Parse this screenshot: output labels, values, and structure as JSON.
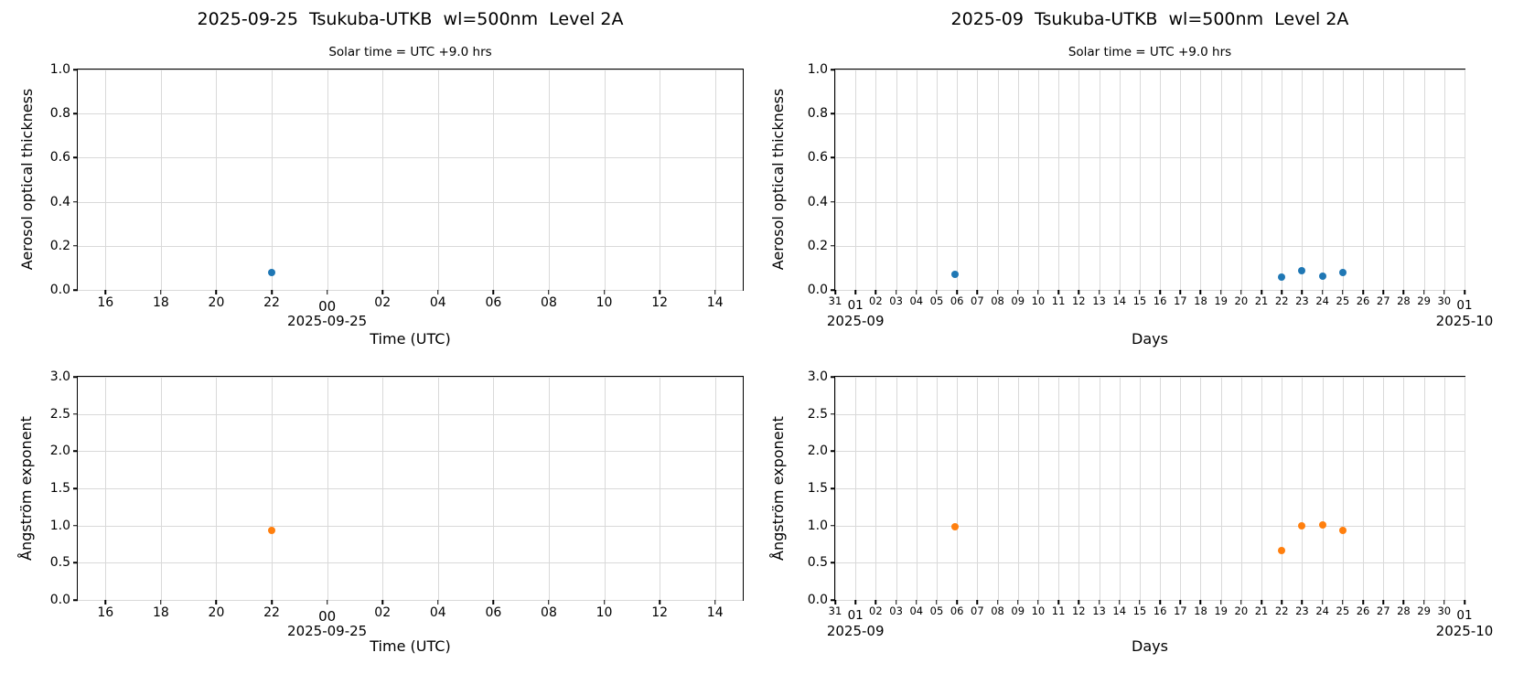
{
  "figure": {
    "background": "#ffffff"
  },
  "colors": {
    "aot_point": "#1f77b4",
    "angstrom_point": "#ff7f0e",
    "grid": "#d9d9d9",
    "axis": "#000000",
    "text": "#000000"
  },
  "chart_data": [
    {
      "id": "daily-aerosol-optical-thickness",
      "type": "scatter",
      "title": "2025-09-25  Tsukuba-UTKB  wl=500nm  Level 2A",
      "subtitle": "Solar time = UTC +9.0 hrs",
      "xlabel": "Time (UTC)",
      "ylabel": "Aerosol optical thickness",
      "grid": true,
      "legend": "none",
      "xlim": [
        15,
        39
      ],
      "ylim": [
        0.0,
        1.0
      ],
      "color": "#1f77b4",
      "x_ticks": [
        {
          "pos": 16,
          "label": "16"
        },
        {
          "pos": 18,
          "label": "18"
        },
        {
          "pos": 20,
          "label": "20"
        },
        {
          "pos": 22,
          "label": "22"
        },
        {
          "pos": 24,
          "label": "00",
          "major": true
        },
        {
          "pos": 26,
          "label": "02"
        },
        {
          "pos": 28,
          "label": "04"
        },
        {
          "pos": 30,
          "label": "06"
        },
        {
          "pos": 32,
          "label": "08"
        },
        {
          "pos": 34,
          "label": "10"
        },
        {
          "pos": 36,
          "label": "12"
        },
        {
          "pos": 38,
          "label": "14"
        }
      ],
      "x_sub_labels": [
        {
          "pos": 24,
          "label": "2025-09-25"
        }
      ],
      "y_ticks": [
        {
          "pos": 0.0,
          "label": "0.0"
        },
        {
          "pos": 0.2,
          "label": "0.2"
        },
        {
          "pos": 0.4,
          "label": "0.4"
        },
        {
          "pos": 0.6,
          "label": "0.6"
        },
        {
          "pos": 0.8,
          "label": "0.8"
        },
        {
          "pos": 1.0,
          "label": "1.0"
        }
      ],
      "points": [
        {
          "x": 22,
          "y": 0.08
        }
      ]
    },
    {
      "id": "monthly-aerosol-optical-thickness",
      "type": "scatter",
      "title": "2025-09  Tsukuba-UTKB  wl=500nm  Level 2A",
      "subtitle": "Solar time = UTC +9.0 hrs",
      "xlabel": "Days",
      "ylabel": "Aerosol optical thickness",
      "grid": true,
      "legend": "none",
      "xlim": [
        0,
        31
      ],
      "ylim": [
        0.0,
        1.0
      ],
      "color": "#1f77b4",
      "x_ticks": [
        {
          "pos": 0,
          "label": "31"
        },
        {
          "pos": 1,
          "label": "01",
          "major": true
        },
        {
          "pos": 2,
          "label": "02"
        },
        {
          "pos": 3,
          "label": "03"
        },
        {
          "pos": 4,
          "label": "04"
        },
        {
          "pos": 5,
          "label": "05"
        },
        {
          "pos": 6,
          "label": "06"
        },
        {
          "pos": 7,
          "label": "07"
        },
        {
          "pos": 8,
          "label": "08"
        },
        {
          "pos": 9,
          "label": "09"
        },
        {
          "pos": 10,
          "label": "10"
        },
        {
          "pos": 11,
          "label": "11"
        },
        {
          "pos": 12,
          "label": "12"
        },
        {
          "pos": 13,
          "label": "13"
        },
        {
          "pos": 14,
          "label": "14"
        },
        {
          "pos": 15,
          "label": "15"
        },
        {
          "pos": 16,
          "label": "16"
        },
        {
          "pos": 17,
          "label": "17"
        },
        {
          "pos": 18,
          "label": "18"
        },
        {
          "pos": 19,
          "label": "19"
        },
        {
          "pos": 20,
          "label": "20"
        },
        {
          "pos": 21,
          "label": "21"
        },
        {
          "pos": 22,
          "label": "22"
        },
        {
          "pos": 23,
          "label": "23"
        },
        {
          "pos": 24,
          "label": "24"
        },
        {
          "pos": 25,
          "label": "25"
        },
        {
          "pos": 26,
          "label": "26"
        },
        {
          "pos": 27,
          "label": "27"
        },
        {
          "pos": 28,
          "label": "28"
        },
        {
          "pos": 29,
          "label": "29"
        },
        {
          "pos": 30,
          "label": "30"
        },
        {
          "pos": 31,
          "label": "01",
          "major": true
        }
      ],
      "x_sub_labels": [
        {
          "pos": 1,
          "label": "2025-09"
        },
        {
          "pos": 31,
          "label": "2025-10"
        }
      ],
      "y_ticks": [
        {
          "pos": 0.0,
          "label": "0.0"
        },
        {
          "pos": 0.2,
          "label": "0.2"
        },
        {
          "pos": 0.4,
          "label": "0.4"
        },
        {
          "pos": 0.6,
          "label": "0.6"
        },
        {
          "pos": 0.8,
          "label": "0.8"
        },
        {
          "pos": 1.0,
          "label": "1.0"
        }
      ],
      "points": [
        {
          "x": 5.9,
          "y": 0.072
        },
        {
          "x": 22,
          "y": 0.06
        },
        {
          "x": 23,
          "y": 0.088
        },
        {
          "x": 24,
          "y": 0.064
        },
        {
          "x": 25,
          "y": 0.078
        }
      ]
    },
    {
      "id": "daily-angstrom-exponent",
      "type": "scatter",
      "title": "",
      "subtitle": "",
      "xlabel": "Time (UTC)",
      "ylabel": "Ångström exponent",
      "grid": true,
      "legend": "none",
      "xlim": [
        15,
        39
      ],
      "ylim": [
        0.0,
        3.0
      ],
      "color": "#ff7f0e",
      "x_ticks": [
        {
          "pos": 16,
          "label": "16"
        },
        {
          "pos": 18,
          "label": "18"
        },
        {
          "pos": 20,
          "label": "20"
        },
        {
          "pos": 22,
          "label": "22"
        },
        {
          "pos": 24,
          "label": "00",
          "major": true
        },
        {
          "pos": 26,
          "label": "02"
        },
        {
          "pos": 28,
          "label": "04"
        },
        {
          "pos": 30,
          "label": "06"
        },
        {
          "pos": 32,
          "label": "08"
        },
        {
          "pos": 34,
          "label": "10"
        },
        {
          "pos": 36,
          "label": "12"
        },
        {
          "pos": 38,
          "label": "14"
        }
      ],
      "x_sub_labels": [
        {
          "pos": 24,
          "label": "2025-09-25"
        }
      ],
      "y_ticks": [
        {
          "pos": 0.0,
          "label": "0.0"
        },
        {
          "pos": 0.5,
          "label": "0.5"
        },
        {
          "pos": 1.0,
          "label": "1.0"
        },
        {
          "pos": 1.5,
          "label": "1.5"
        },
        {
          "pos": 2.0,
          "label": "2.0"
        },
        {
          "pos": 2.5,
          "label": "2.5"
        },
        {
          "pos": 3.0,
          "label": "3.0"
        }
      ],
      "points": [
        {
          "x": 22,
          "y": 0.93
        }
      ]
    },
    {
      "id": "monthly-angstrom-exponent",
      "type": "scatter",
      "title": "",
      "subtitle": "",
      "xlabel": "Days",
      "ylabel": "Ångström exponent",
      "grid": true,
      "legend": "none",
      "xlim": [
        0,
        31
      ],
      "ylim": [
        0.0,
        3.0
      ],
      "color": "#ff7f0e",
      "x_ticks": [
        {
          "pos": 0,
          "label": "31"
        },
        {
          "pos": 1,
          "label": "01",
          "major": true
        },
        {
          "pos": 2,
          "label": "02"
        },
        {
          "pos": 3,
          "label": "03"
        },
        {
          "pos": 4,
          "label": "04"
        },
        {
          "pos": 5,
          "label": "05"
        },
        {
          "pos": 6,
          "label": "06"
        },
        {
          "pos": 7,
          "label": "07"
        },
        {
          "pos": 8,
          "label": "08"
        },
        {
          "pos": 9,
          "label": "09"
        },
        {
          "pos": 10,
          "label": "10"
        },
        {
          "pos": 11,
          "label": "11"
        },
        {
          "pos": 12,
          "label": "12"
        },
        {
          "pos": 13,
          "label": "13"
        },
        {
          "pos": 14,
          "label": "14"
        },
        {
          "pos": 15,
          "label": "15"
        },
        {
          "pos": 16,
          "label": "16"
        },
        {
          "pos": 17,
          "label": "17"
        },
        {
          "pos": 18,
          "label": "18"
        },
        {
          "pos": 19,
          "label": "19"
        },
        {
          "pos": 20,
          "label": "20"
        },
        {
          "pos": 21,
          "label": "21"
        },
        {
          "pos": 22,
          "label": "22"
        },
        {
          "pos": 23,
          "label": "23"
        },
        {
          "pos": 24,
          "label": "24"
        },
        {
          "pos": 25,
          "label": "25"
        },
        {
          "pos": 26,
          "label": "26"
        },
        {
          "pos": 27,
          "label": "27"
        },
        {
          "pos": 28,
          "label": "28"
        },
        {
          "pos": 29,
          "label": "29"
        },
        {
          "pos": 30,
          "label": "30"
        },
        {
          "pos": 31,
          "label": "01",
          "major": true
        }
      ],
      "x_sub_labels": [
        {
          "pos": 1,
          "label": "2025-09"
        },
        {
          "pos": 31,
          "label": "2025-10"
        }
      ],
      "y_ticks": [
        {
          "pos": 0.0,
          "label": "0.0"
        },
        {
          "pos": 0.5,
          "label": "0.5"
        },
        {
          "pos": 1.0,
          "label": "1.0"
        },
        {
          "pos": 1.5,
          "label": "1.5"
        },
        {
          "pos": 2.0,
          "label": "2.0"
        },
        {
          "pos": 2.5,
          "label": "2.5"
        },
        {
          "pos": 3.0,
          "label": "3.0"
        }
      ],
      "points": [
        {
          "x": 5.9,
          "y": 0.98
        },
        {
          "x": 22,
          "y": 0.66
        },
        {
          "x": 23,
          "y": 1.0
        },
        {
          "x": 24,
          "y": 1.01
        },
        {
          "x": 25,
          "y": 0.93
        }
      ]
    }
  ]
}
